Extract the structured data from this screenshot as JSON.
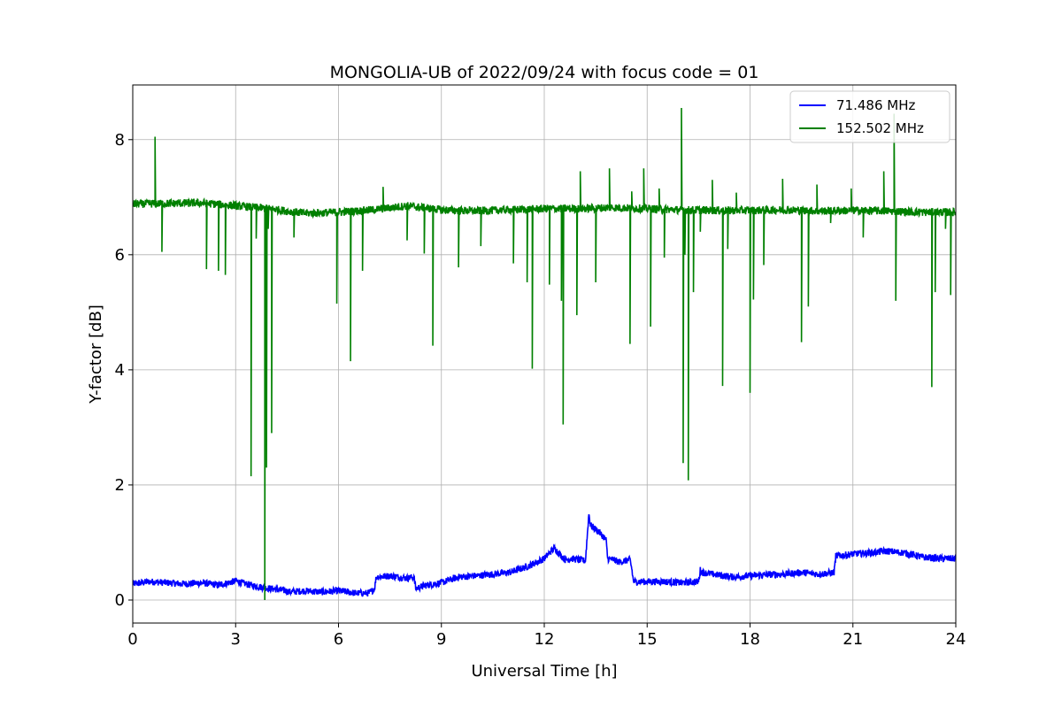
{
  "chart_data": {
    "type": "line",
    "title": "MONGOLIA-UB of 2022/09/24 with focus code = 01",
    "xlabel": "Universal Time [h]",
    "ylabel": "Y-factor [dB]",
    "xlim": [
      0,
      24
    ],
    "ylim": [
      -0.4,
      8.95
    ],
    "xticks": [
      0,
      3,
      6,
      9,
      12,
      15,
      18,
      21,
      24
    ],
    "yticks": [
      0,
      2,
      4,
      6,
      8
    ],
    "grid": true,
    "legend_position": "top-right",
    "series": [
      {
        "name": "  71.486 MHz",
        "color": "#0000ff",
        "x": [
          0,
          0.5,
          1,
          1.5,
          2,
          2.5,
          3,
          3.3,
          3.5,
          3.8,
          4,
          4.3,
          4.6,
          5,
          5.5,
          6,
          6.5,
          6.9,
          7.05,
          7.1,
          7.5,
          8,
          8.2,
          8.25,
          8.5,
          9,
          9.5,
          10,
          10.5,
          11,
          11.5,
          12,
          12.2,
          12.3,
          12.6,
          12.8,
          13.2,
          13.3,
          13.35,
          13.6,
          13.8,
          13.85,
          14,
          14.2,
          14.5,
          14.55,
          14.6,
          15,
          15.5,
          16,
          16.5,
          16.55,
          16.6,
          17,
          17.5,
          18,
          18.5,
          19,
          19.5,
          20,
          20.45,
          20.5,
          21,
          21.5,
          22,
          22.5,
          23,
          23.5,
          24
        ],
        "y": [
          0.28,
          0.32,
          0.3,
          0.28,
          0.3,
          0.26,
          0.33,
          0.28,
          0.25,
          0.22,
          0.2,
          0.18,
          0.14,
          0.16,
          0.14,
          0.16,
          0.12,
          0.12,
          0.2,
          0.4,
          0.42,
          0.38,
          0.4,
          0.2,
          0.25,
          0.3,
          0.4,
          0.42,
          0.45,
          0.48,
          0.58,
          0.72,
          0.85,
          0.9,
          0.7,
          0.72,
          0.68,
          1.5,
          1.3,
          1.18,
          1.05,
          0.72,
          0.7,
          0.66,
          0.7,
          0.55,
          0.32,
          0.32,
          0.32,
          0.3,
          0.32,
          0.52,
          0.48,
          0.44,
          0.4,
          0.42,
          0.44,
          0.45,
          0.48,
          0.45,
          0.48,
          0.76,
          0.8,
          0.82,
          0.85,
          0.82,
          0.75,
          0.72,
          0.72
        ]
      },
      {
        "name": "152.502 MHz",
        "color": "#008000",
        "baseline": [
          [
            0,
            6.88
          ],
          [
            2,
            6.9
          ],
          [
            3,
            6.85
          ],
          [
            4,
            6.8
          ],
          [
            5,
            6.72
          ],
          [
            6,
            6.74
          ],
          [
            7,
            6.78
          ],
          [
            8,
            6.85
          ],
          [
            9,
            6.78
          ],
          [
            10,
            6.76
          ],
          [
            11,
            6.78
          ],
          [
            12,
            6.8
          ],
          [
            13,
            6.8
          ],
          [
            14,
            6.82
          ],
          [
            15,
            6.8
          ],
          [
            16,
            6.78
          ],
          [
            17,
            6.77
          ],
          [
            18,
            6.77
          ],
          [
            19,
            6.78
          ],
          [
            20,
            6.76
          ],
          [
            21,
            6.77
          ],
          [
            22,
            6.76
          ],
          [
            23,
            6.74
          ],
          [
            24,
            6.74
          ]
        ],
        "spikes_x": [
          0.65,
          0.85,
          2.15,
          2.5,
          2.7,
          3.45,
          3.6,
          3.85,
          3.9,
          3.95,
          4.05,
          4.7,
          5.95,
          6.35,
          6.7,
          7.3,
          8.0,
          8.5,
          8.75,
          9.5,
          10.15,
          11.1,
          11.5,
          11.65,
          12.15,
          12.5,
          12.55,
          12.95,
          13.05,
          13.5,
          13.9,
          14.5,
          14.55,
          14.9,
          15.1,
          15.35,
          15.5,
          16.0,
          16.05,
          16.1,
          16.2,
          16.35,
          16.55,
          16.9,
          17.2,
          17.35,
          17.6,
          18.0,
          18.1,
          18.4,
          18.95,
          19.5,
          19.7,
          19.95,
          20.35,
          20.95,
          21.3,
          21.9,
          22.2,
          22.25,
          23.3,
          23.4,
          23.7,
          23.85
        ],
        "spikes_y": [
          8.05,
          6.05,
          5.75,
          5.72,
          5.65,
          2.15,
          6.28,
          0.0,
          2.3,
          6.45,
          2.9,
          6.3,
          5.15,
          4.15,
          5.72,
          7.18,
          6.25,
          6.02,
          4.42,
          5.78,
          6.15,
          5.85,
          5.52,
          4.02,
          5.48,
          5.2,
          3.05,
          4.95,
          7.45,
          5.52,
          7.5,
          4.45,
          7.1,
          7.5,
          4.75,
          7.15,
          5.95,
          8.55,
          2.38,
          6.0,
          2.08,
          5.35,
          6.4,
          7.3,
          3.72,
          6.1,
          7.08,
          3.6,
          5.22,
          5.82,
          7.32,
          4.48,
          5.1,
          7.22,
          6.55,
          7.15,
          6.3,
          7.45,
          8.45,
          5.2,
          3.7,
          5.35,
          6.45,
          5.3
        ]
      }
    ]
  }
}
